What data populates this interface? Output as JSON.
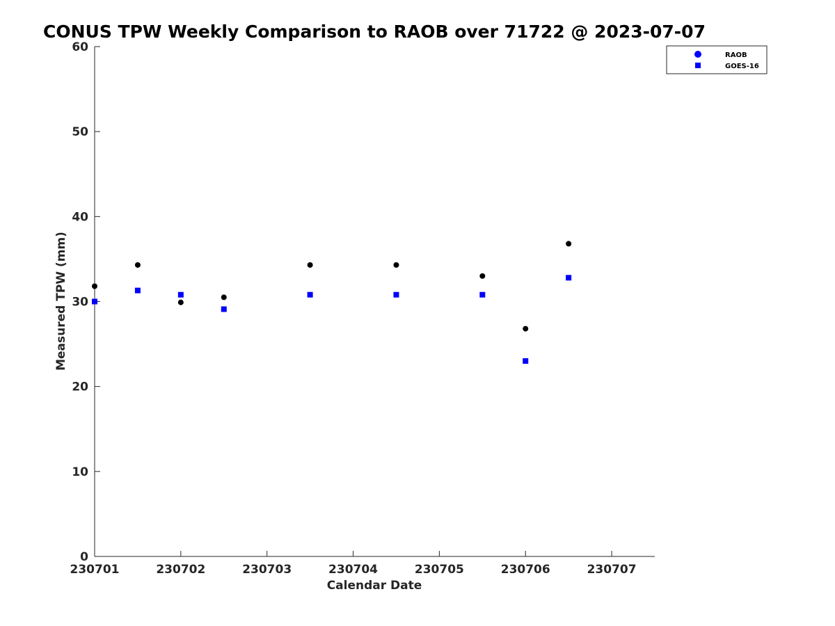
{
  "chart_data": {
    "type": "scatter",
    "title": "CONUS TPW Weekly Comparison to RAOB over 71722 @ 2023-07-07",
    "xlabel": "Calendar Date",
    "ylabel": "Measured TPW (mm)",
    "xlim": [
      "230701",
      "230707 12Z"
    ],
    "ylim": [
      0,
      60
    ],
    "x_ticks": [
      "230701",
      "230702",
      "230703",
      "230704",
      "230705",
      "230706",
      "230707"
    ],
    "y_ticks": [
      "0",
      "10",
      "20",
      "30",
      "40",
      "50",
      "60"
    ],
    "grid": false,
    "legend_position": "top-right",
    "series": [
      {
        "name": "RAOB",
        "color": "#000000",
        "legend_color": "#0000ff",
        "marker": "circle",
        "x": [
          "230701 00Z",
          "230701 12Z",
          "230702 00Z",
          "230702 12Z",
          "230703 12Z",
          "230704 12Z",
          "230705 12Z",
          "230706 00Z",
          "230706 12Z"
        ],
        "y": [
          31.8,
          34.3,
          29.9,
          30.5,
          34.3,
          34.3,
          33.0,
          26.8,
          36.8
        ]
      },
      {
        "name": "GOES-16",
        "color": "#0000ff",
        "legend_color": "#0000ff",
        "marker": "square",
        "x": [
          "230701 00Z",
          "230701 12Z",
          "230702 00Z",
          "230702 12Z",
          "230703 12Z",
          "230704 12Z",
          "230705 12Z",
          "230706 00Z",
          "230706 12Z"
        ],
        "y": [
          30.0,
          31.3,
          30.8,
          29.1,
          30.8,
          30.8,
          30.8,
          23.0,
          32.8
        ]
      }
    ]
  }
}
